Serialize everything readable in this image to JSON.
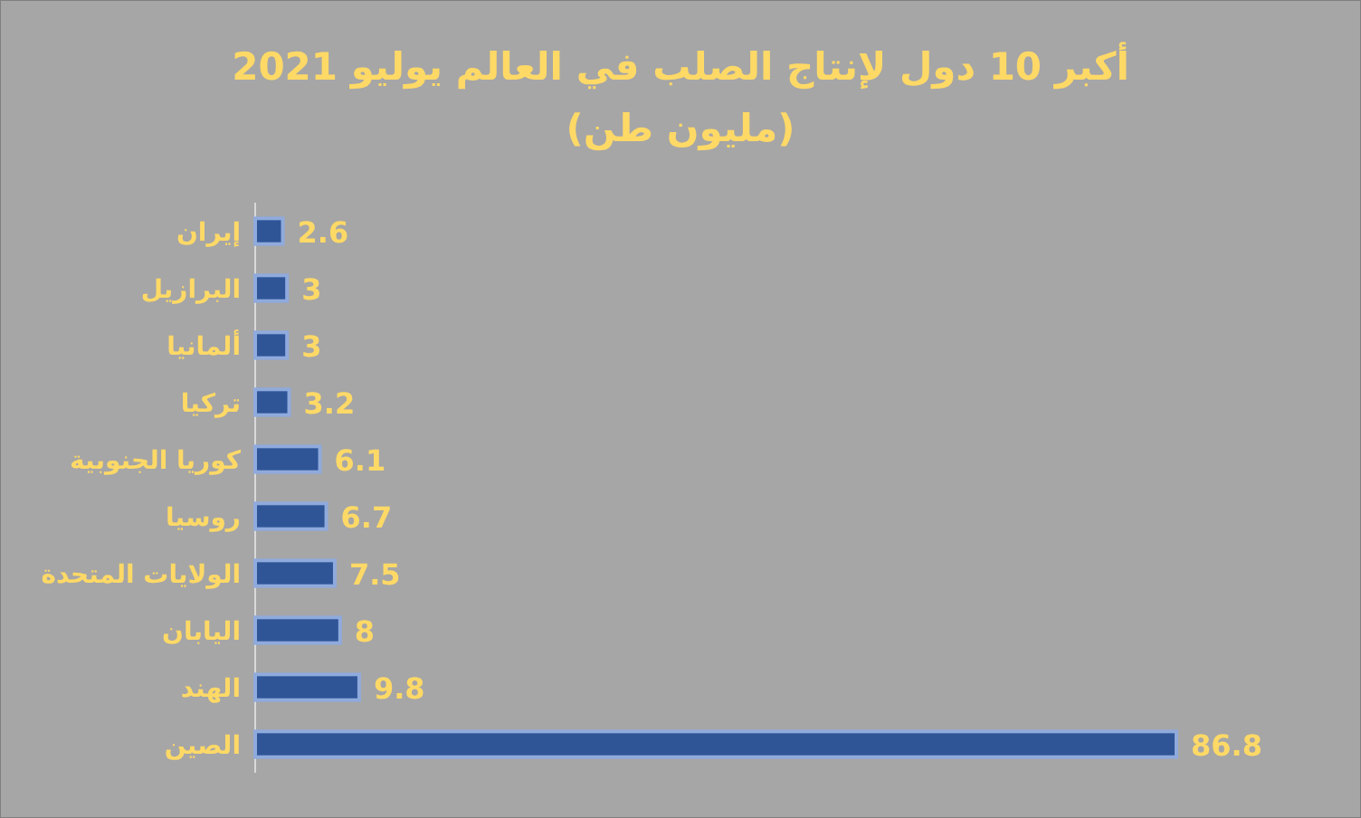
{
  "chart_data": {
    "type": "bar",
    "orientation": "horizontal",
    "title": "أكبر 10 دول لإنتاج الصلب في العالم يوليو 2021",
    "subtitle": "(مليون طن)",
    "categories": [
      "إيران",
      "البرازيل",
      "ألمانيا",
      "تركيا",
      "كوريا الجنوبية",
      "روسيا",
      "الولايات المتحدة",
      "اليابان",
      "الهند",
      "الصين"
    ],
    "values": [
      2.6,
      3,
      3,
      3.2,
      6.1,
      6.7,
      7.5,
      8,
      9.8,
      86.8
    ],
    "color": "#2f5597",
    "data_labels": true
  }
}
